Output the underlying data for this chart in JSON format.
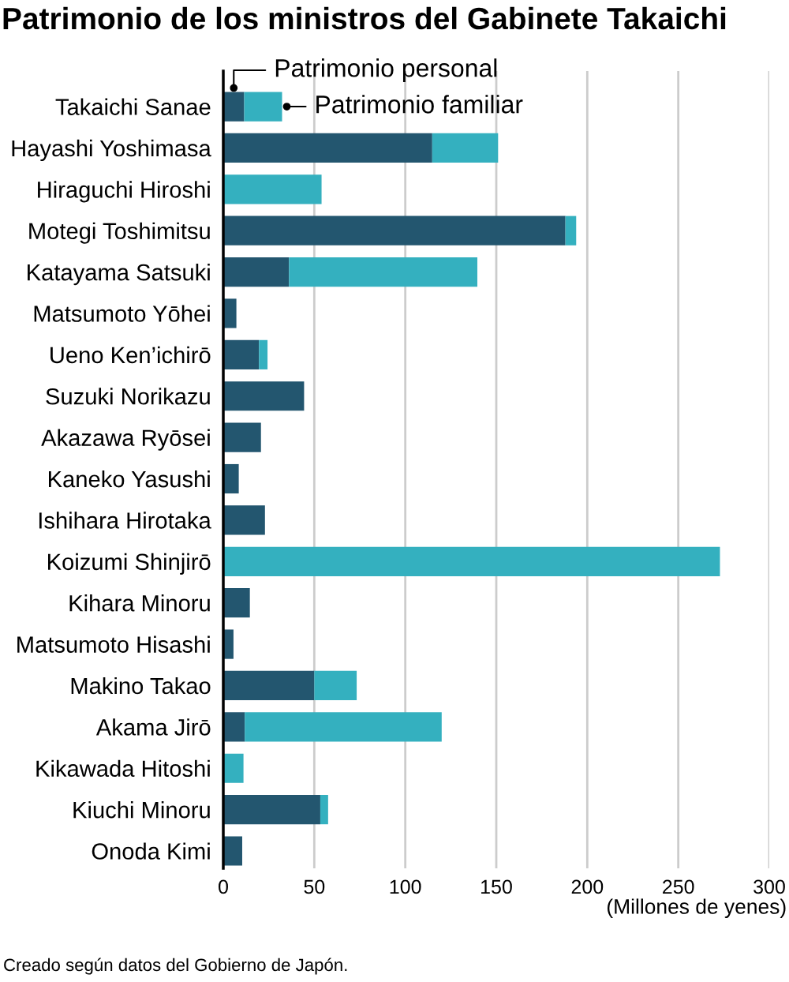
{
  "chart_data": {
    "type": "bar",
    "orientation": "horizontal",
    "stacked": true,
    "title": "Patrimonio de los ministros del Gabinete Takaichi",
    "xlabel": "(Millones de yenes)",
    "categories": [
      "Takaichi Sanae",
      "Hayashi Yoshimasa",
      "Hiraguchi Hiroshi",
      "Motegi Toshimitsu",
      "Katayama Satsuki",
      "Matsumoto Yōhei",
      "Ueno Ken’ichirō",
      "Suzuki Norikazu",
      "Akazawa Ryōsei",
      "Kaneko Yasushi",
      "Ishihara Hirotaka",
      "Koizumi Shinjirō",
      "Kihara Minoru",
      "Matsumoto Hisashi",
      "Makino Takao",
      "Akama Jirō",
      "Kikawada Hitoshi",
      "Kiuchi Minoru",
      "Onoda Kimi"
    ],
    "series": [
      {
        "name": "Patrimonio personal",
        "color": "#23566f",
        "values": [
          11.5,
          114.8,
          null,
          188.0,
          36.1,
          7.2,
          19.6,
          44.4,
          20.7,
          8.5,
          22.9,
          null,
          14.6,
          5.6,
          50.0,
          11.8,
          null,
          53.3,
          10.4
        ]
      },
      {
        "name": "Patrimonio familiar",
        "color": "#34b0bf",
        "values": [
          20.8,
          36.2,
          54.0,
          5.9,
          103.5,
          null,
          4.7,
          null,
          null,
          null,
          null,
          272.9,
          null,
          null,
          23.3,
          108.2,
          11.1,
          4.3,
          null
        ]
      }
    ],
    "xlim": [
      0,
      300
    ],
    "xticks": [
      0,
      50,
      100,
      150,
      200,
      250,
      300
    ],
    "grid": "x",
    "annotations": [
      "Creado según datos del Gobierno de Japón."
    ]
  }
}
